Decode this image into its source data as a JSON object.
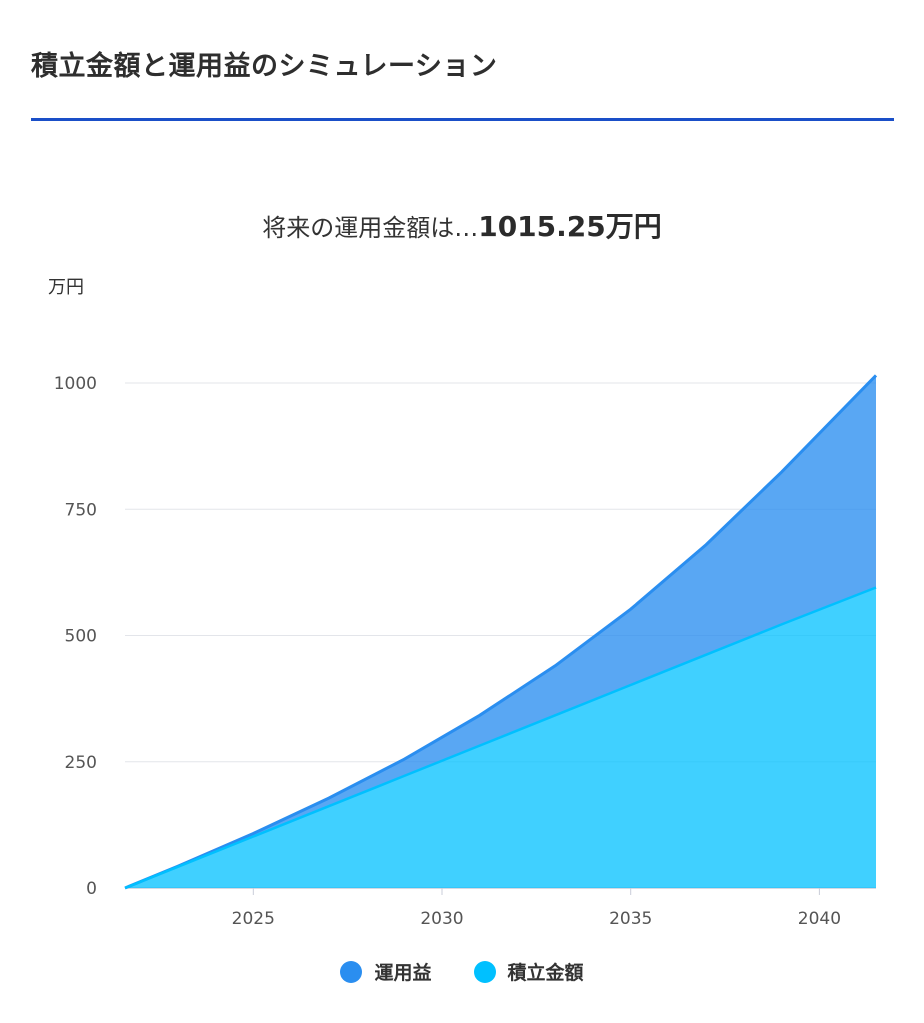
{
  "header": {
    "title": "積立金額と運用益のシミュレーション"
  },
  "summary": {
    "prefix": "将来の運用金額は…",
    "amount": "1015.25万円"
  },
  "chart_data": {
    "type": "area",
    "stacked": true,
    "ylabel": "万円",
    "xlim": [
      2021.6,
      2041.5
    ],
    "ylim": [
      0,
      1000
    ],
    "y_ticks": [
      0,
      250,
      500,
      750,
      1000
    ],
    "x_ticks": [
      2025,
      2030,
      2035,
      2040
    ],
    "grid": true,
    "legend_position": "bottom",
    "x": [
      2021.6,
      2023,
      2025,
      2027,
      2029,
      2031,
      2033,
      2035,
      2037,
      2039,
      2041.5
    ],
    "series": [
      {
        "name": "積立金額",
        "color": "#00c0ff",
        "values": [
          0,
          42,
          102,
          162,
          222,
          282,
          342,
          402,
          462,
          522,
          595
        ]
      },
      {
        "name": "運用益",
        "color": "#2a8ef0",
        "values": [
          0,
          1,
          6,
          16,
          33,
          60,
          98,
          150,
          218,
          302,
          420
        ]
      }
    ],
    "total_values": [
      0,
      43,
      108,
      178,
      255,
      342,
      440,
      552,
      680,
      824,
      1015.25
    ]
  },
  "legend": [
    {
      "label": "運用益",
      "color": "#2a8ef0"
    },
    {
      "label": "積立金額",
      "color": "#00c0ff"
    }
  ]
}
